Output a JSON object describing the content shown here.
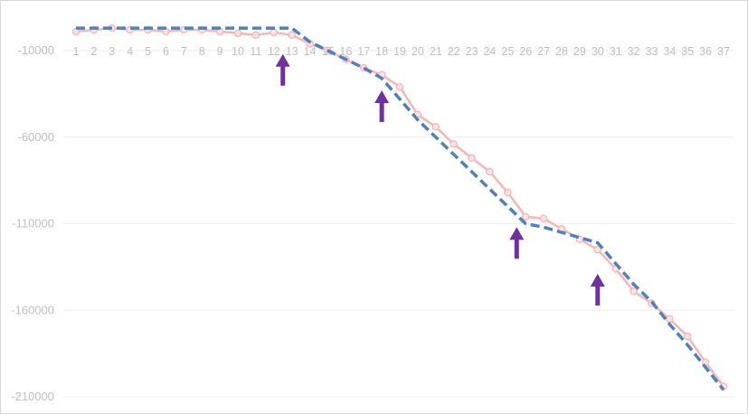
{
  "chart_data": {
    "type": "line",
    "title": "",
    "xlabel": "",
    "ylabel": "",
    "categories": [
      "1",
      "2",
      "3",
      "4",
      "5",
      "6",
      "7",
      "8",
      "9",
      "10",
      "11",
      "12",
      "13",
      "14",
      "15",
      "16",
      "17",
      "18",
      "19",
      "20",
      "21",
      "22",
      "23",
      "24",
      "25",
      "26",
      "27",
      "28",
      "29",
      "30",
      "31",
      "32",
      "33",
      "34",
      "35",
      "36",
      "37"
    ],
    "ylim": [
      -210000,
      -10000
    ],
    "yticks": [
      -10000,
      -60000,
      -110000,
      -160000,
      -210000
    ],
    "ytick_labels": [
      "-10000",
      "-60000",
      "-110000",
      "-160000",
      "-210000"
    ],
    "grid": "horizontal",
    "legend": "none",
    "x_axis_position": "top",
    "series": [
      {
        "style": "solid-with-markers",
        "color": "#f4b6b6",
        "values": [
          1000,
          2000,
          3000,
          2000,
          2000,
          1000,
          2000,
          2000,
          1000,
          0,
          -1000,
          500,
          -1000,
          -6000,
          -10000,
          -15000,
          -20000,
          -24000,
          -31000,
          -47000,
          -54000,
          -64000,
          -72000,
          -80000,
          -92000,
          -106000,
          -107000,
          -113000,
          -119000,
          -125000,
          -136000,
          -149000,
          -156000,
          -165000,
          -175000,
          -190000,
          -204000
        ]
      },
      {
        "style": "dashed",
        "color": "#4f81bd",
        "values": [
          3000,
          3000,
          3000,
          3000,
          3000,
          3000,
          3000,
          3000,
          3000,
          3000,
          3000,
          3000,
          3000,
          -5000,
          -10000,
          -15000,
          -20000,
          -26000,
          -38000,
          -50000,
          -60000,
          -70000,
          -80000,
          -90000,
          -100000,
          -110000,
          -112000,
          -115000,
          -118000,
          -121000,
          -133000,
          -145000,
          -155000,
          -168000,
          -180000,
          -193000,
          -206000
        ]
      }
    ],
    "annotations": [
      {
        "type": "arrow-up",
        "x": 12.5,
        "y": -13000,
        "color": "#7030a0"
      },
      {
        "type": "arrow-up",
        "x": 18,
        "y": -34000,
        "color": "#7030a0"
      },
      {
        "type": "arrow-up",
        "x": 25.5,
        "y": -113000,
        "color": "#7030a0"
      },
      {
        "type": "arrow-up",
        "x": 30,
        "y": -140000,
        "color": "#7030a0"
      }
    ]
  }
}
